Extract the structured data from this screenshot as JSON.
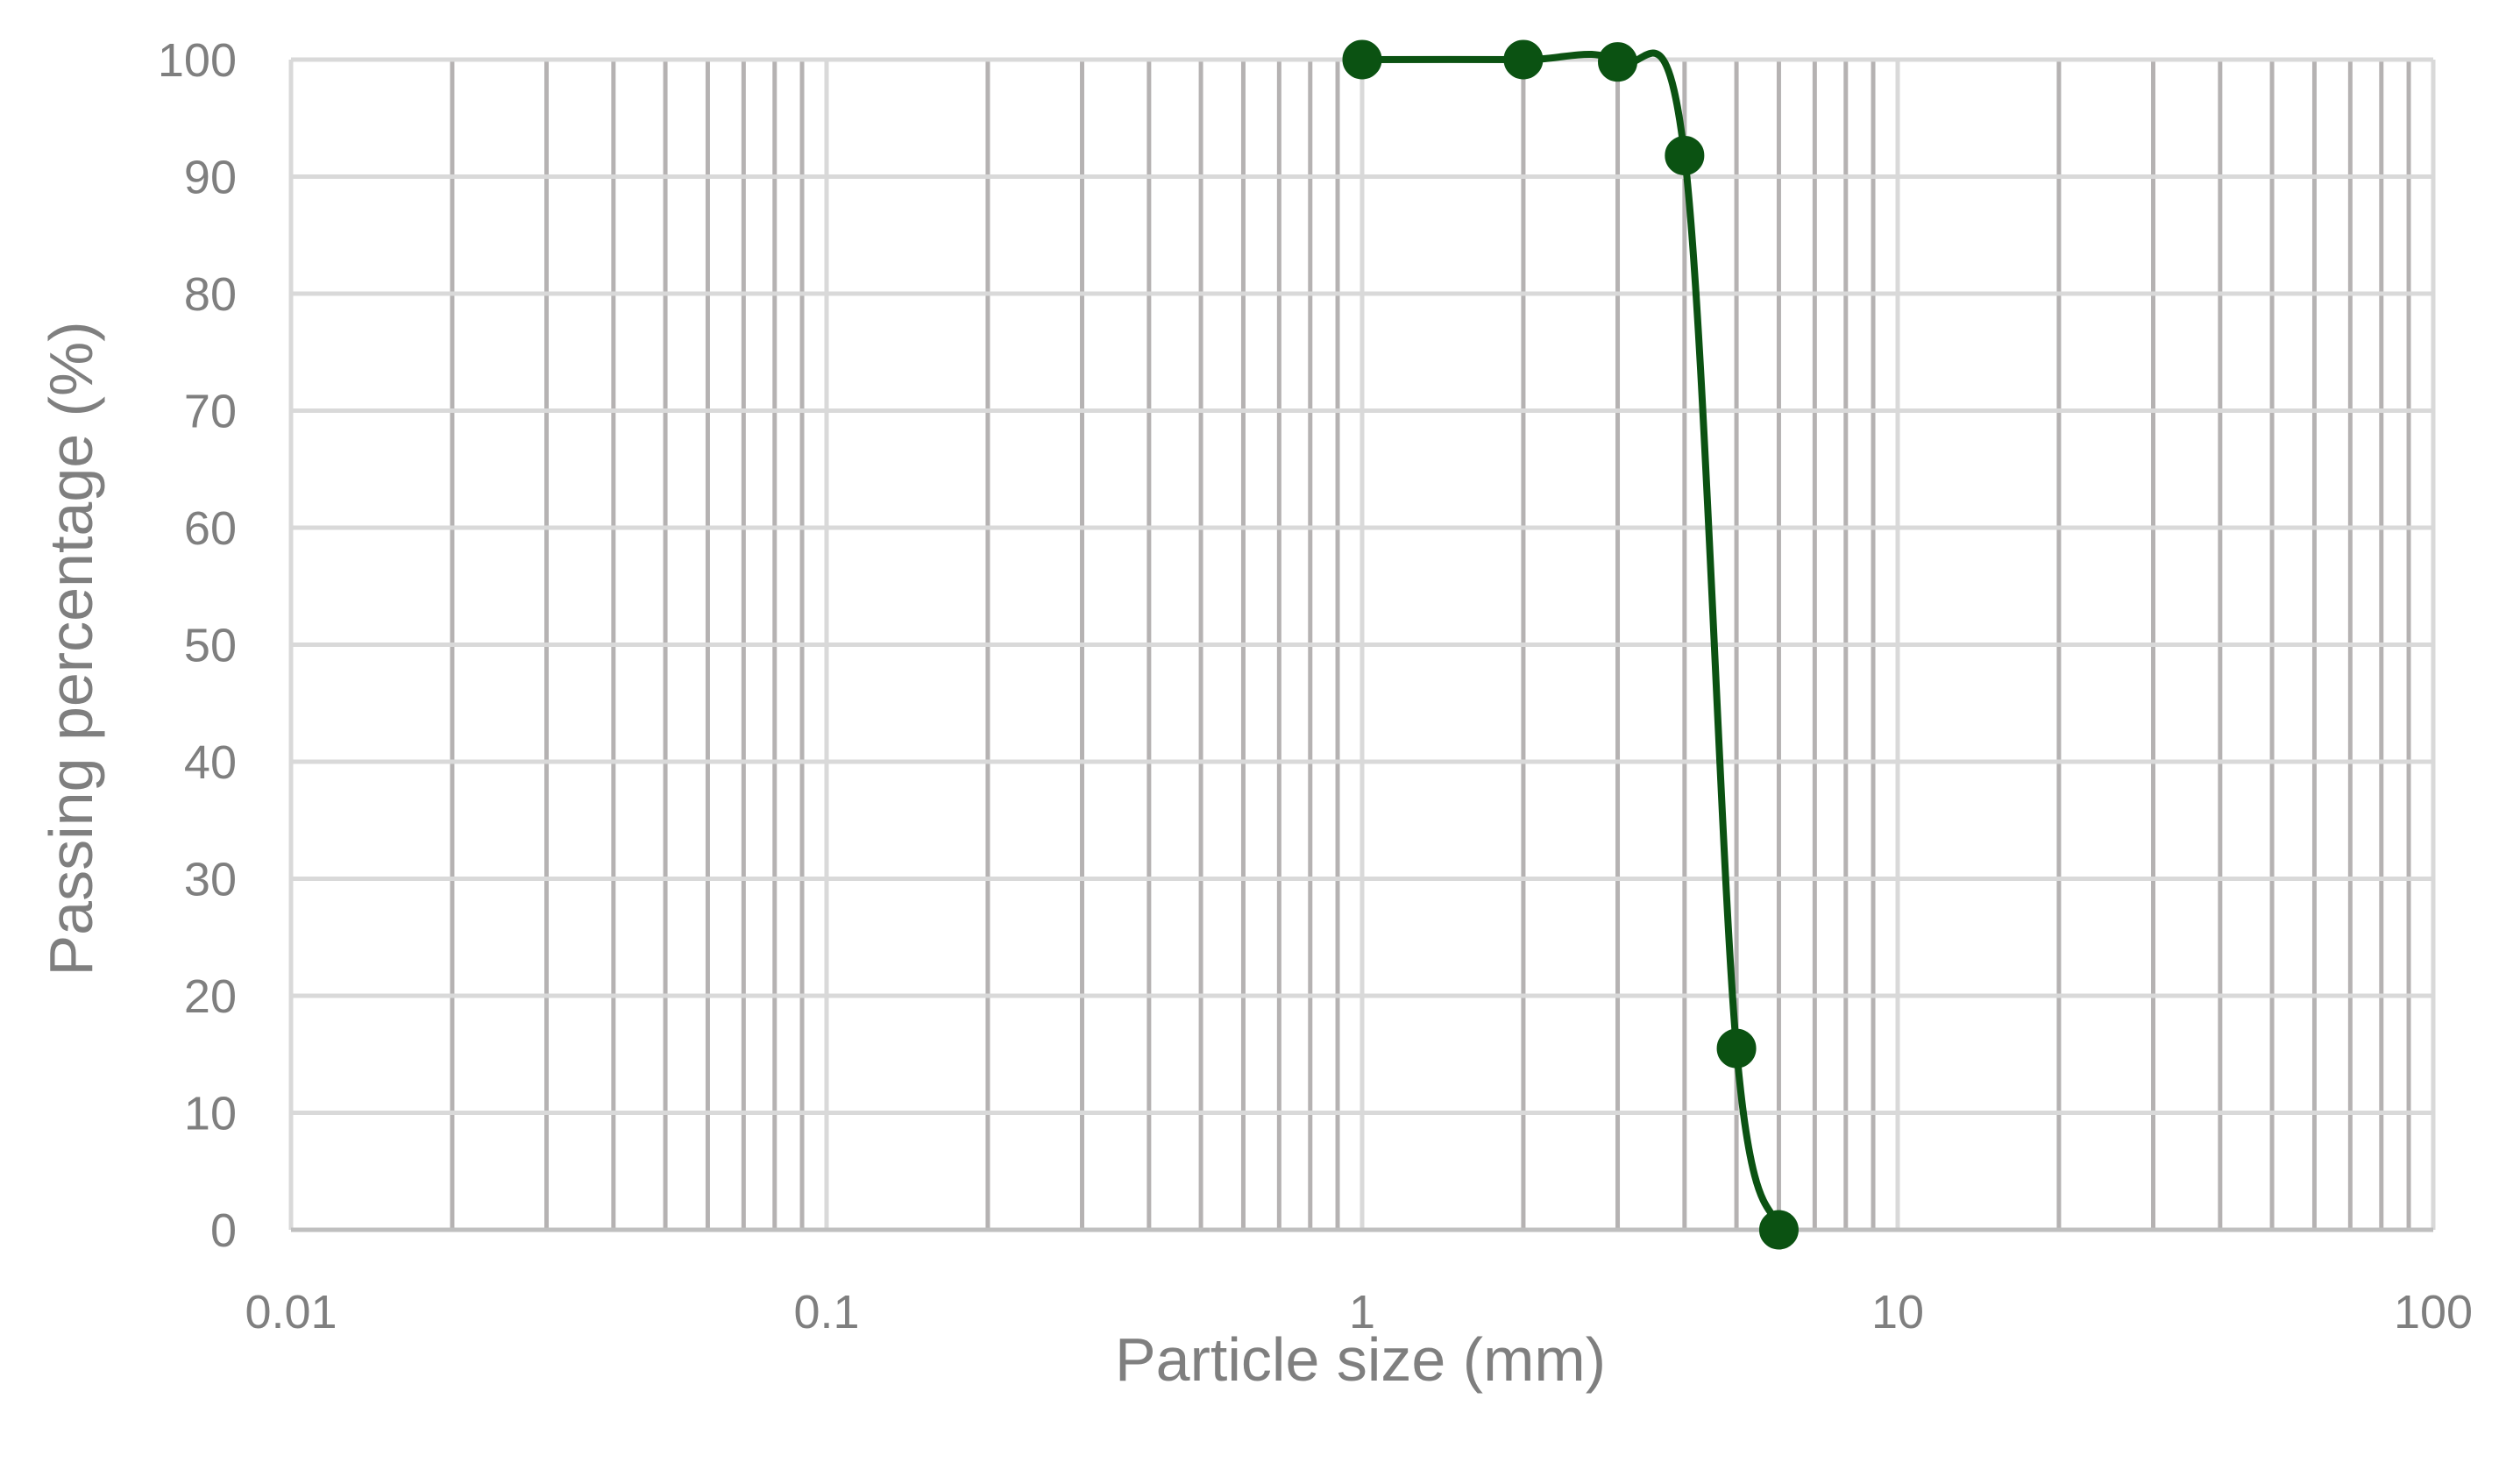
{
  "colors": {
    "background": "#ffffff",
    "major_grid": "#d9d9d9",
    "minor_grid": "#b5b2b2",
    "axis_line": "#bfbfbf",
    "text": "#7f7f7f",
    "series": "#0b5212"
  },
  "chart_data": {
    "type": "line",
    "title": "",
    "xlabel": "Particle size (mm)",
    "ylabel": "Passing percentage (%)",
    "x_scale": "log",
    "xlim": [
      0.01,
      100
    ],
    "ylim": [
      0,
      100
    ],
    "grid": true,
    "x_ticks": [
      "0.01",
      "0.1",
      "1",
      "10",
      "100"
    ],
    "y_ticks": [
      "0",
      "10",
      "20",
      "30",
      "40",
      "50",
      "60",
      "70",
      "80",
      "90",
      "100"
    ],
    "series": [
      {
        "smooth": true,
        "markers": true,
        "x": [
          1,
          2,
          3,
          4,
          5,
          6
        ],
        "y": [
          100,
          100,
          99.8,
          91.8,
          15.5,
          0
        ]
      }
    ]
  }
}
